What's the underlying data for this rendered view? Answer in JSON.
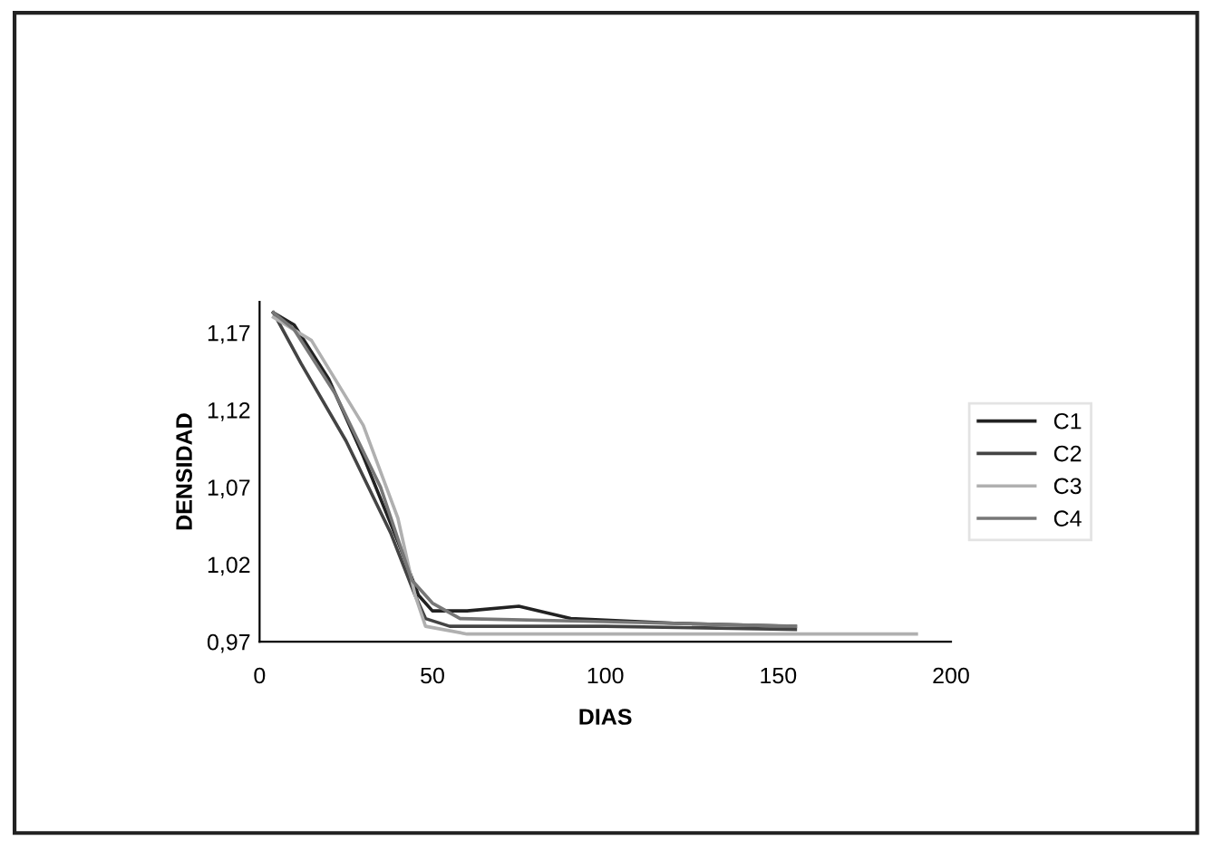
{
  "chart_data": {
    "type": "line",
    "xlabel": "DIAS",
    "ylabel": "DENSIDAD",
    "xlim": [
      0,
      200
    ],
    "xticks": [
      0,
      50,
      100,
      150,
      200
    ],
    "ylim": [
      0.97,
      1.19
    ],
    "yticks": [
      {
        "value": 0.97,
        "label": "0,97"
      },
      {
        "value": 1.02,
        "label": "1,02"
      },
      {
        "value": 1.07,
        "label": "1,07"
      },
      {
        "value": 1.12,
        "label": "1,12"
      },
      {
        "value": 1.17,
        "label": "1,17"
      }
    ],
    "legend": "right",
    "grid": false,
    "marker": "none",
    "series": [
      {
        "name": "C1",
        "color": "#222222",
        "x": [
          4,
          10,
          20,
          30,
          40,
          46,
          50,
          60,
          75,
          90,
          120,
          155
        ],
        "values": [
          1.183,
          1.175,
          1.14,
          1.09,
          1.035,
          1.0,
          0.99,
          0.99,
          0.993,
          0.985,
          0.982,
          0.98
        ]
      },
      {
        "name": "C2",
        "color": "#444444",
        "x": [
          4,
          12,
          25,
          38,
          45,
          48,
          55,
          100,
          155
        ],
        "values": [
          1.183,
          1.15,
          1.1,
          1.04,
          1.0,
          0.985,
          0.98,
          0.98,
          0.978
        ]
      },
      {
        "name": "C3",
        "color": "#b0b0b0",
        "x": [
          4,
          15,
          30,
          40,
          45,
          48,
          60,
          100,
          190
        ],
        "values": [
          1.18,
          1.165,
          1.11,
          1.05,
          1.0,
          0.98,
          0.975,
          0.975,
          0.975
        ]
      },
      {
        "name": "C4",
        "color": "#777777",
        "x": [
          4,
          10,
          22,
          35,
          44,
          50,
          58,
          100,
          155
        ],
        "values": [
          1.183,
          1.172,
          1.13,
          1.07,
          1.01,
          0.995,
          0.985,
          0.983,
          0.98
        ]
      }
    ]
  }
}
